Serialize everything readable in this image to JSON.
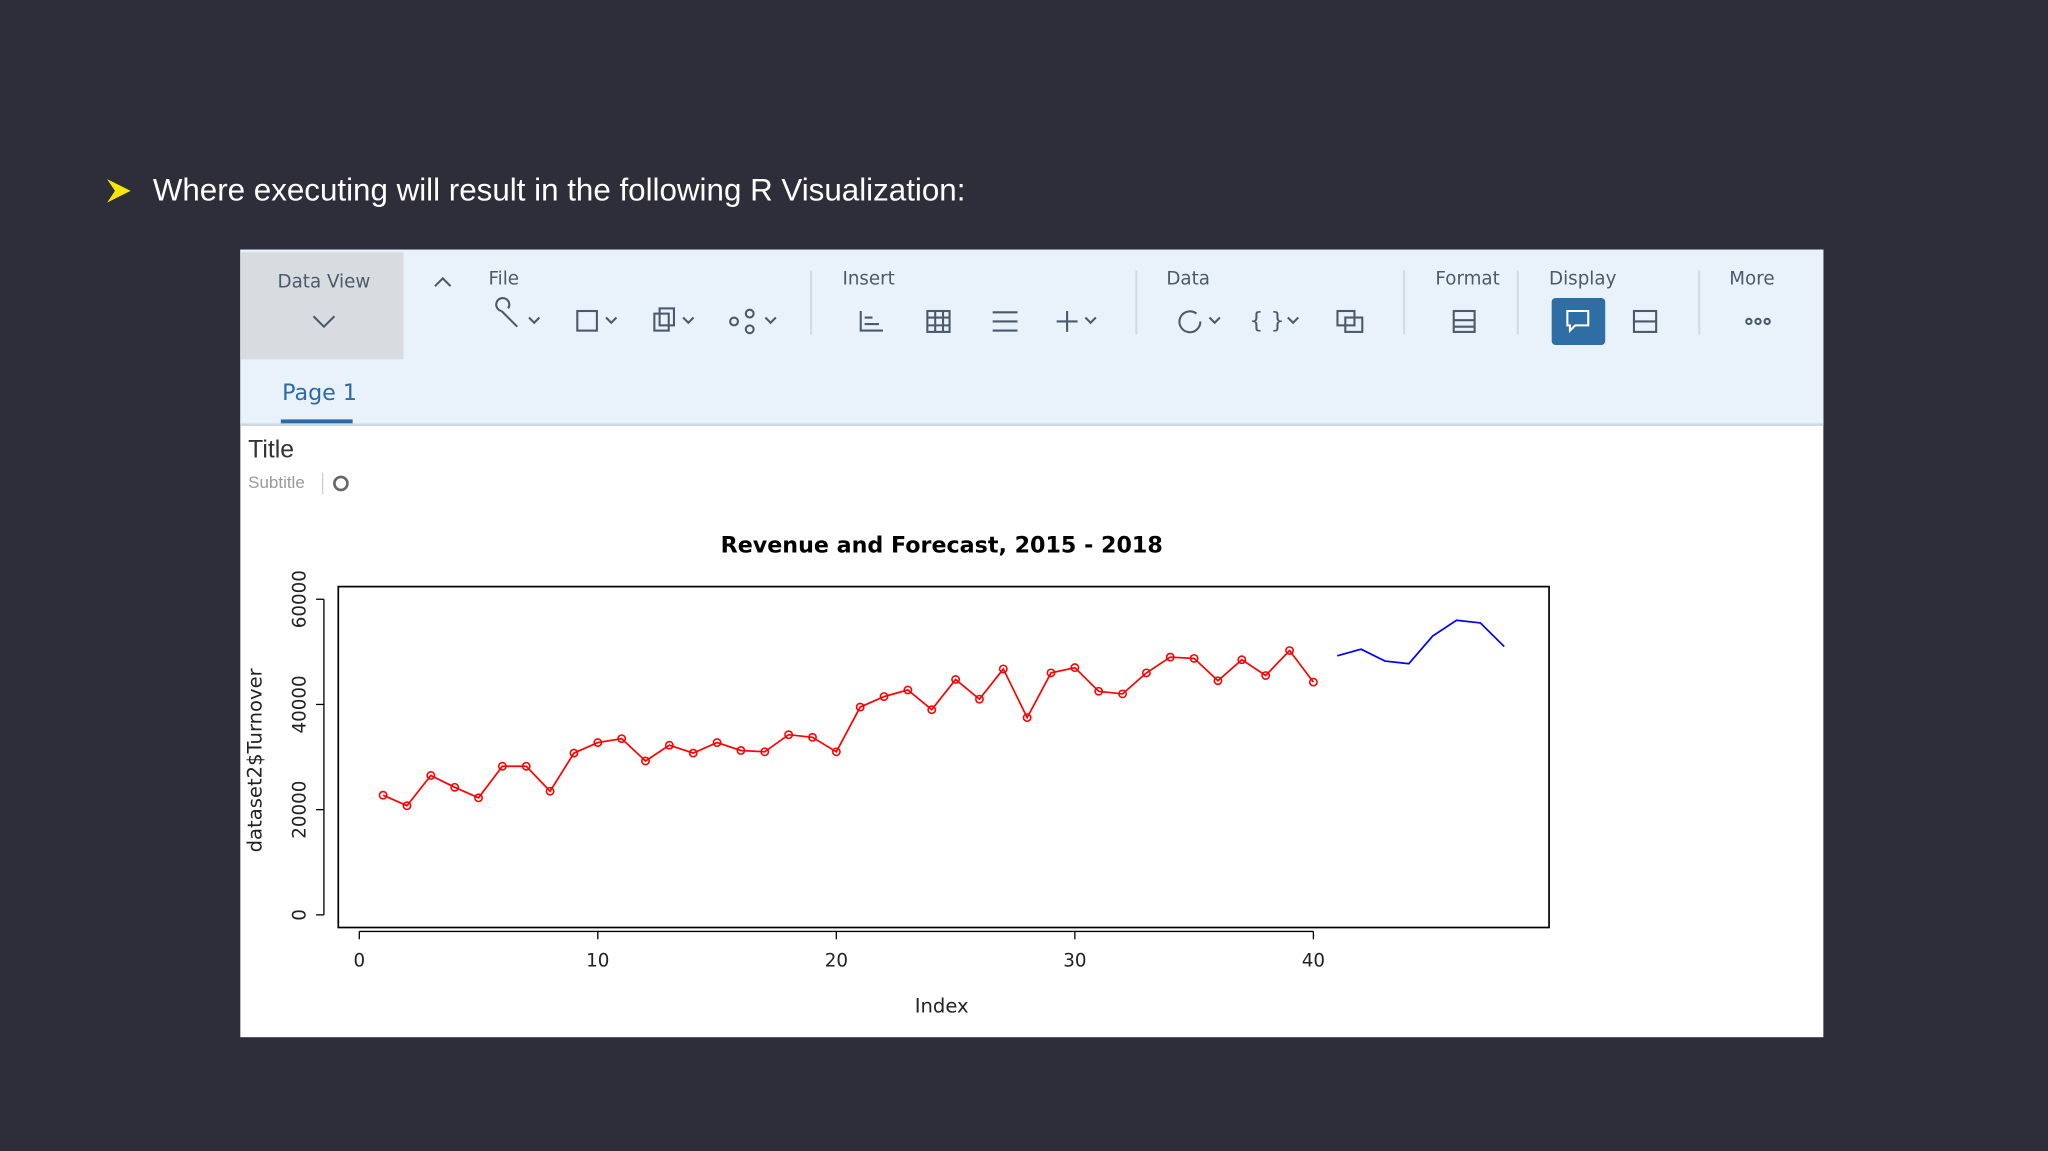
{
  "slide": {
    "bullet_text": "Where executing will result in the following R Visualization:"
  },
  "toolbar": {
    "data_view": "Data View",
    "groups": [
      "File",
      "Insert",
      "Data",
      "Format",
      "Display",
      "More"
    ]
  },
  "tabs": [
    "Page 1"
  ],
  "story": {
    "title": "Title",
    "subtitle": "Subtitle"
  },
  "chart_data": {
    "type": "line",
    "title": "Revenue and Forecast, 2015 - 2018",
    "x_label": "Index",
    "y_label": "dataset2$Turnover",
    "x": [
      1,
      2,
      3,
      4,
      5,
      6,
      7,
      8,
      9,
      10,
      11,
      12,
      13,
      14,
      15,
      16,
      17,
      18,
      19,
      20,
      21,
      22,
      23,
      24,
      25,
      26,
      27,
      28,
      29,
      30,
      31,
      32,
      33,
      34,
      35,
      36,
      37,
      38,
      39,
      40,
      41,
      42,
      43,
      44,
      45,
      46,
      47,
      48
    ],
    "series": [
      {
        "color": "#ff0000",
        "markers": true,
        "values": [
          22750,
          20750,
          26500,
          24250,
          22250,
          28250,
          28250,
          23500,
          30750,
          32750,
          33500,
          29250,
          32250,
          30750,
          32750,
          31250,
          31000,
          34250,
          33750,
          31000,
          39500,
          41500,
          42750,
          39000,
          44750,
          41000,
          46750,
          37500,
          46000,
          47000,
          42500,
          42000,
          46000,
          49000,
          48750,
          44500,
          48500,
          45500,
          50250,
          44250,
          null,
          null,
          null,
          null,
          null,
          null,
          null,
          null
        ]
      },
      {
        "color": "#0000ff",
        "markers": false,
        "values": [
          null,
          null,
          null,
          null,
          null,
          null,
          null,
          null,
          null,
          null,
          null,
          null,
          null,
          null,
          null,
          null,
          null,
          null,
          null,
          null,
          null,
          null,
          null,
          null,
          null,
          null,
          null,
          null,
          null,
          null,
          null,
          null,
          null,
          null,
          null,
          null,
          null,
          null,
          null,
          null,
          49250,
          50500,
          48250,
          47750,
          53000,
          56000,
          55500,
          51000
        ]
      }
    ],
    "xlim": [
      -0.88,
      49.88
    ],
    "ylim": [
      -2400,
      62400
    ],
    "xticks": [
      0,
      10,
      20,
      30,
      40
    ],
    "yticks": [
      0,
      20000,
      40000,
      60000
    ]
  }
}
